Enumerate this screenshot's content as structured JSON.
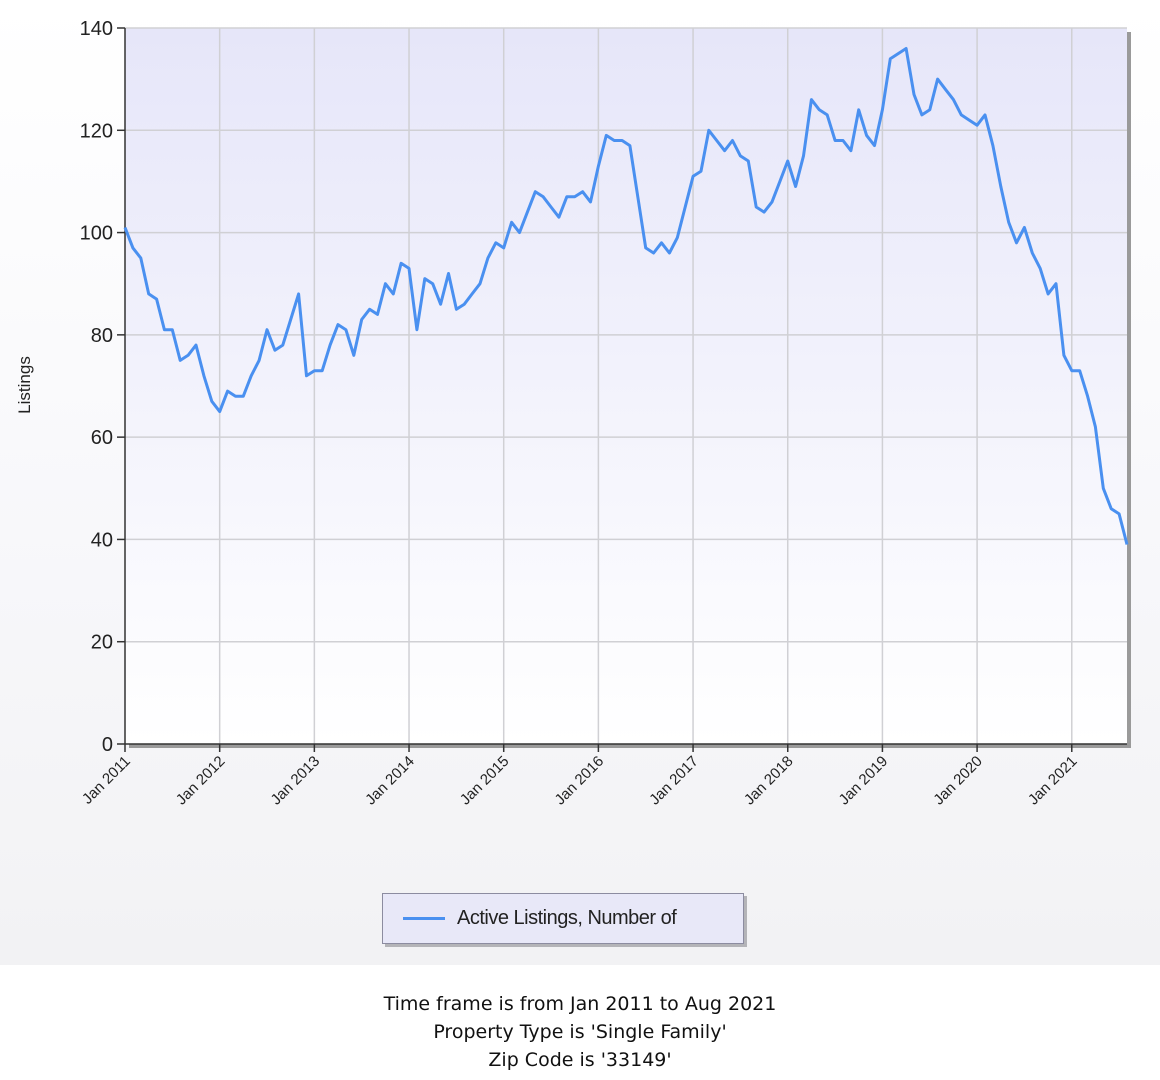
{
  "chart_data": {
    "type": "line",
    "ylabel": "Listings",
    "xlabel": "",
    "ylim": [
      0,
      140
    ],
    "yticks": [
      "0",
      "20",
      "40",
      "60",
      "80",
      "100",
      "120",
      "140"
    ],
    "xticks": [
      "Jan 2011",
      "Jan 2012",
      "Jan 2013",
      "Jan 2014",
      "Jan 2015",
      "Jan 2016",
      "Jan 2017",
      "Jan 2018",
      "Jan 2019",
      "Jan 2020",
      "Jan 2021"
    ],
    "xrange": [
      "2011-01",
      "2021-08"
    ],
    "grid": true,
    "legend_position": "bottom",
    "series": [
      {
        "name": "Active Listings, Number of",
        "color": "#4a90f0",
        "x": [
          "2011-01",
          "2011-02",
          "2011-03",
          "2011-04",
          "2011-05",
          "2011-06",
          "2011-07",
          "2011-08",
          "2011-09",
          "2011-10",
          "2011-11",
          "2011-12",
          "2012-01",
          "2012-02",
          "2012-03",
          "2012-04",
          "2012-05",
          "2012-06",
          "2012-07",
          "2012-08",
          "2012-09",
          "2012-10",
          "2012-11",
          "2012-12",
          "2013-01",
          "2013-02",
          "2013-03",
          "2013-04",
          "2013-05",
          "2013-06",
          "2013-07",
          "2013-08",
          "2013-09",
          "2013-10",
          "2013-11",
          "2013-12",
          "2014-01",
          "2014-02",
          "2014-03",
          "2014-04",
          "2014-05",
          "2014-06",
          "2014-07",
          "2014-08",
          "2014-09",
          "2014-10",
          "2014-11",
          "2014-12",
          "2015-01",
          "2015-02",
          "2015-03",
          "2015-04",
          "2015-05",
          "2015-06",
          "2015-07",
          "2015-08",
          "2015-09",
          "2015-10",
          "2015-11",
          "2015-12",
          "2016-01",
          "2016-02",
          "2016-03",
          "2016-04",
          "2016-05",
          "2016-06",
          "2016-07",
          "2016-08",
          "2016-09",
          "2016-10",
          "2016-11",
          "2016-12",
          "2017-01",
          "2017-02",
          "2017-03",
          "2017-04",
          "2017-05",
          "2017-06",
          "2017-07",
          "2017-08",
          "2017-09",
          "2017-10",
          "2017-11",
          "2017-12",
          "2018-01",
          "2018-02",
          "2018-03",
          "2018-04",
          "2018-05",
          "2018-06",
          "2018-07",
          "2018-08",
          "2018-09",
          "2018-10",
          "2018-11",
          "2018-12",
          "2019-01",
          "2019-02",
          "2019-03",
          "2019-04",
          "2019-05",
          "2019-06",
          "2019-07",
          "2019-08",
          "2019-09",
          "2019-10",
          "2019-11",
          "2019-12",
          "2020-01",
          "2020-02",
          "2020-03",
          "2020-04",
          "2020-05",
          "2020-06",
          "2020-07",
          "2020-08",
          "2020-09",
          "2020-10",
          "2020-11",
          "2020-12",
          "2021-01",
          "2021-02",
          "2021-03",
          "2021-04",
          "2021-05",
          "2021-06",
          "2021-07",
          "2021-08"
        ],
        "values": [
          101,
          97,
          95,
          88,
          87,
          81,
          81,
          75,
          76,
          78,
          72,
          67,
          65,
          69,
          68,
          68,
          72,
          75,
          81,
          77,
          78,
          83,
          88,
          72,
          73,
          73,
          78,
          82,
          81,
          76,
          83,
          85,
          84,
          90,
          88,
          94,
          93,
          81,
          91,
          90,
          86,
          92,
          85,
          86,
          88,
          90,
          95,
          98,
          97,
          102,
          100,
          104,
          108,
          107,
          105,
          103,
          107,
          107,
          108,
          106,
          113,
          119,
          118,
          118,
          117,
          107,
          97,
          96,
          98,
          96,
          99,
          105,
          111,
          112,
          120,
          118,
          116,
          118,
          115,
          114,
          105,
          104,
          106,
          110,
          114,
          109,
          115,
          126,
          124,
          123,
          118,
          118,
          116,
          124,
          119,
          117,
          124,
          134,
          135,
          136,
          127,
          123,
          124,
          130,
          128,
          126,
          123,
          122,
          121,
          123,
          117,
          109,
          102,
          98,
          101,
          96,
          93,
          88,
          90,
          76,
          73,
          73,
          68,
          62,
          50,
          46,
          45,
          39
        ]
      }
    ]
  },
  "footer": {
    "line1": "Time frame is from Jan 2011 to Aug 2021",
    "line2": "Property Type is 'Single Family'",
    "line3": "Zip Code is '33149'"
  }
}
